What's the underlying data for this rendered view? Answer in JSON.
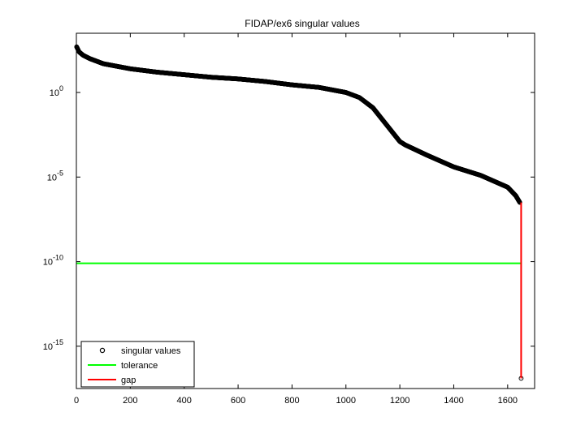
{
  "chart_data": {
    "type": "scatter",
    "title": "FIDAP/ex6 singular values",
    "xlabel": "",
    "ylabel": "",
    "xlim": [
      0,
      1700
    ],
    "ylim_log10": [
      -17.5,
      3.5
    ],
    "yscale": "log",
    "x_ticks": [
      0,
      200,
      400,
      600,
      800,
      1000,
      1200,
      1400,
      1600
    ],
    "y_ticks": [
      {
        "base": "10",
        "exp": "0",
        "log10": 0
      },
      {
        "base": "10",
        "exp": "-5",
        "log10": -5
      },
      {
        "base": "10",
        "exp": "-10",
        "log10": -10
      },
      {
        "base": "10",
        "exp": "-15",
        "log10": -15
      }
    ],
    "grid": false,
    "legend_position": "bottom-left",
    "series": [
      {
        "name": "singular values",
        "kind": "markers",
        "marker": "circle",
        "color": "#000000",
        "n": 1651,
        "x": [
          1,
          10,
          25,
          50,
          100,
          200,
          300,
          400,
          500,
          600,
          700,
          800,
          900,
          1000,
          1050,
          1100,
          1150,
          1180,
          1200,
          1220,
          1300,
          1400,
          1500,
          1600,
          1630,
          1645,
          1650
        ],
        "log10_y": [
          2.7,
          2.4,
          2.2,
          2.0,
          1.7,
          1.4,
          1.2,
          1.05,
          0.9,
          0.8,
          0.65,
          0.45,
          0.3,
          0.0,
          -0.3,
          -0.9,
          -1.9,
          -2.5,
          -2.9,
          -3.1,
          -3.7,
          -4.4,
          -4.9,
          -5.6,
          -6.1,
          -6.5,
          -16.9
        ]
      },
      {
        "name": "tolerance",
        "kind": "line",
        "color": "#00ff00",
        "x": [
          1,
          1650
        ],
        "log10_y": [
          -10.1,
          -10.1
        ]
      },
      {
        "name": "gap",
        "kind": "line",
        "color": "#ff0000",
        "x": [
          1650,
          1650
        ],
        "log10_y": [
          -6.5,
          -16.9
        ]
      }
    ]
  }
}
